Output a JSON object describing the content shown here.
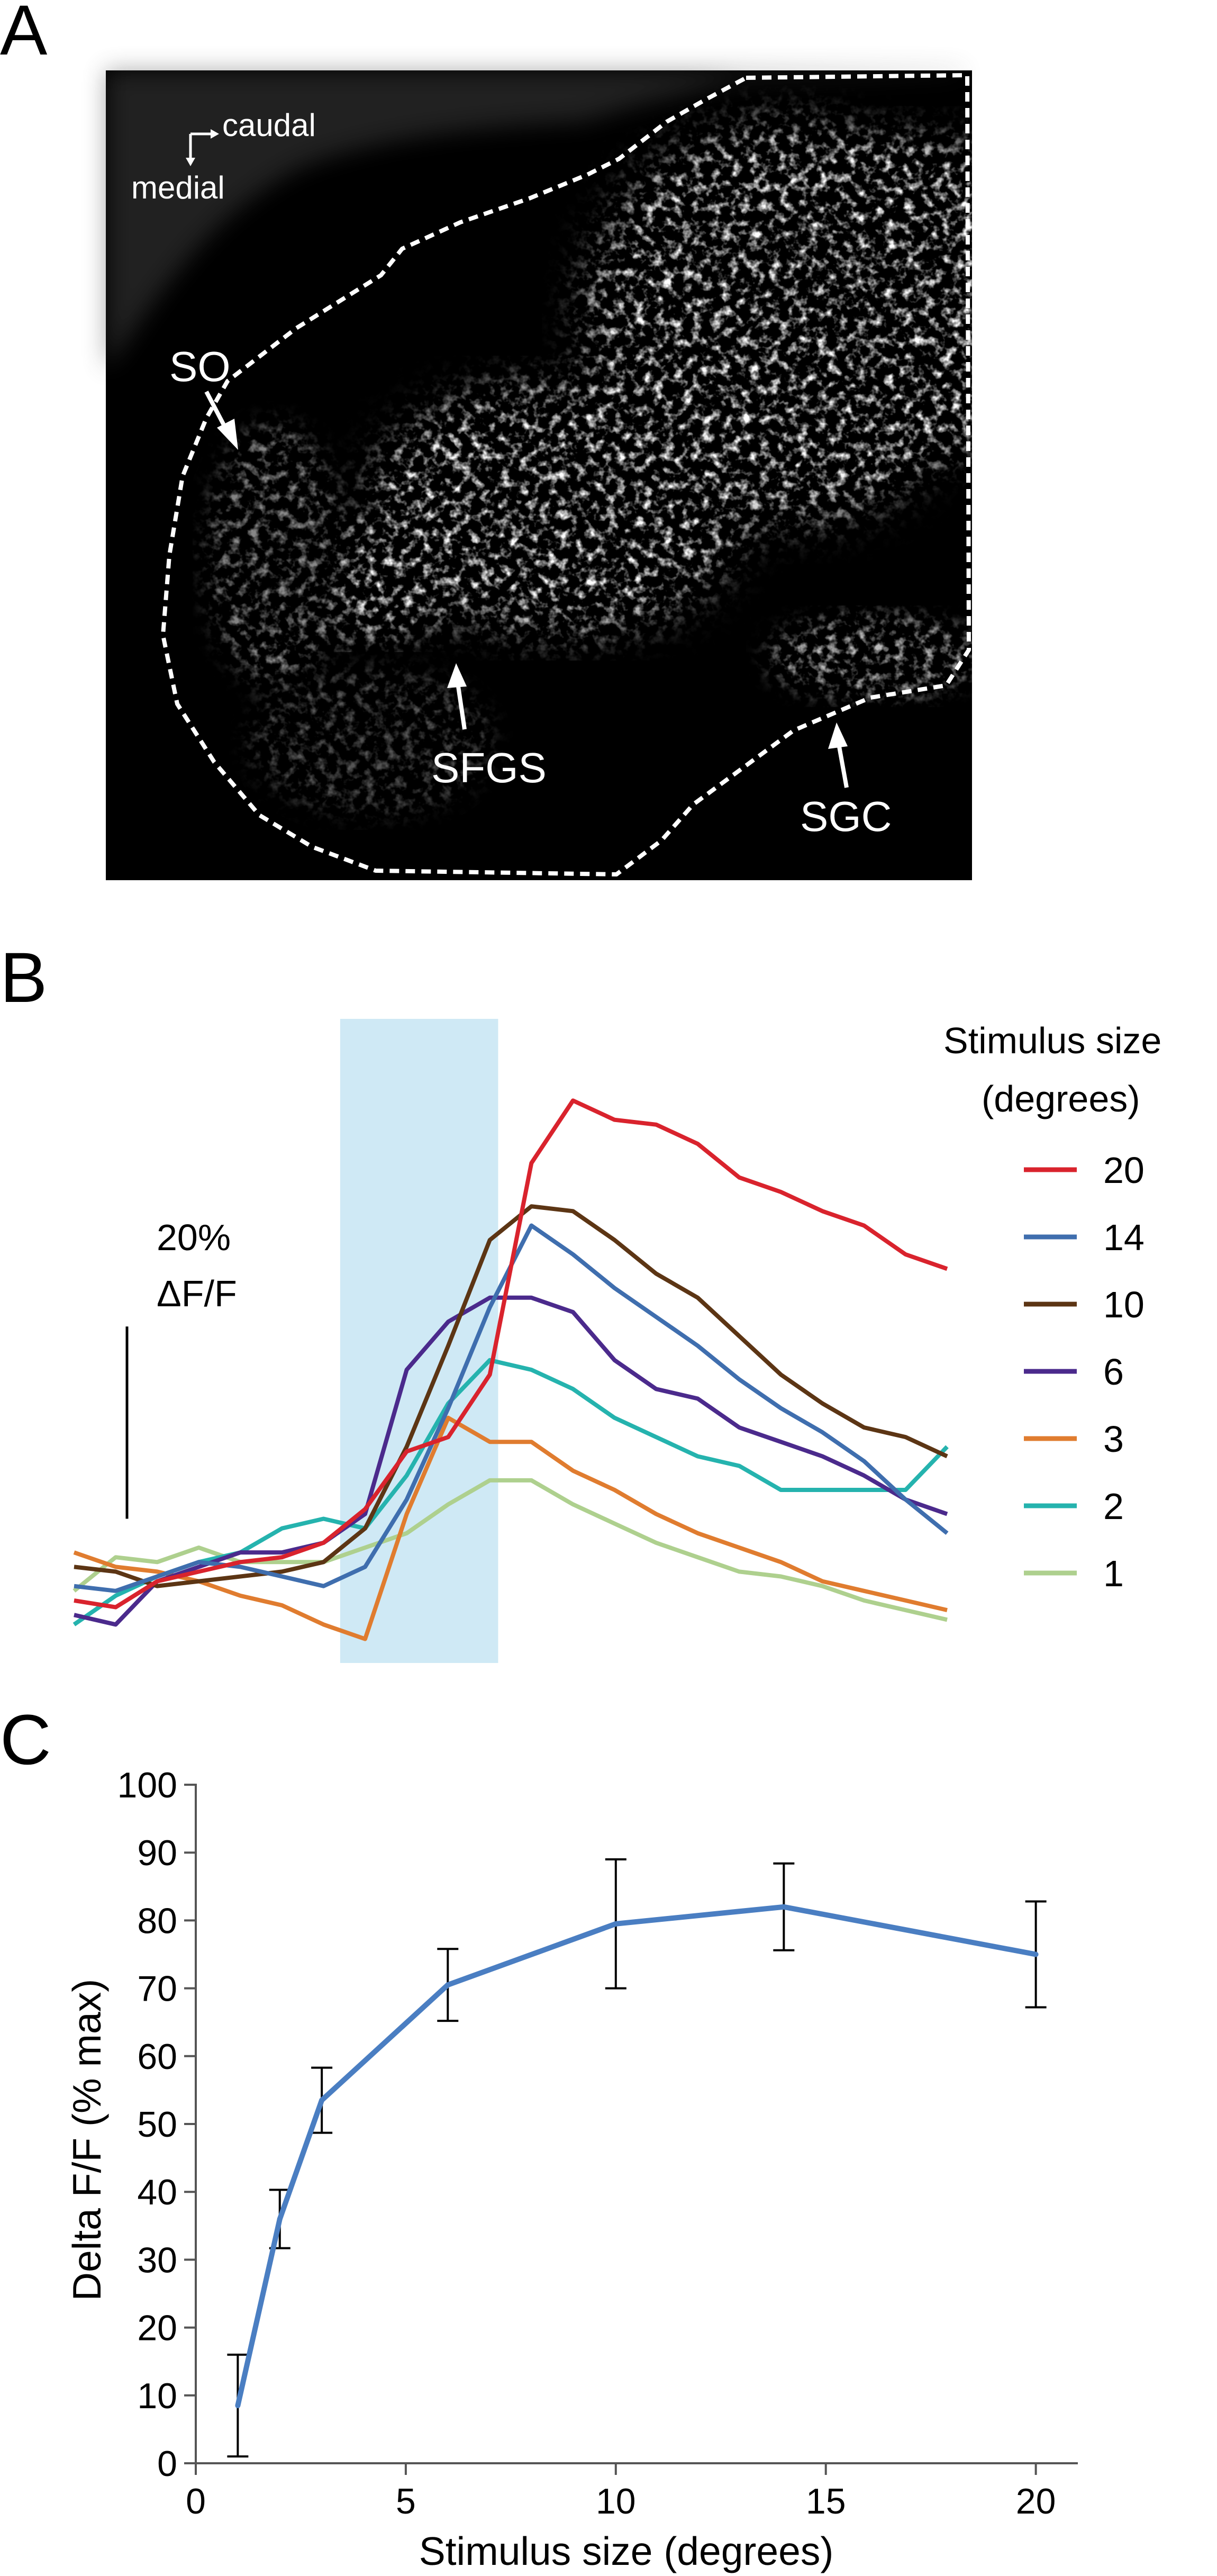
{
  "panels": {
    "a": {
      "letter": "A",
      "orientation": {
        "x_label": "caudal",
        "y_label": "medial"
      },
      "labels": {
        "so": "SO",
        "sfgs": "SFGS",
        "sgc": "SGC"
      }
    },
    "b": {
      "letter": "B",
      "scale_bar": {
        "value": "20%",
        "unit": "ΔF/F"
      },
      "legend_title": [
        "Stimulus size",
        "(degrees)"
      ]
    },
    "c": {
      "letter": "C"
    }
  },
  "colors": {
    "stimulus_band": "#cfe9f5",
    "size_20": "#d9232d",
    "size_14": "#3f6eae",
    "size_10": "#5c3514",
    "size_6": "#4b2a8c",
    "size_3": "#e07c2f",
    "size_2": "#25b3ae",
    "size_1": "#aed08e",
    "panel_c_line": "#4a7ec2"
  },
  "chart_data": [
    {
      "panel": "B",
      "type": "line",
      "title": "",
      "xlabel": "",
      "ylabel": "",
      "x": [
        0,
        1,
        2,
        3,
        4,
        5,
        6,
        7,
        8,
        9,
        10,
        11,
        12,
        13,
        14,
        15,
        16,
        17,
        18,
        19,
        20,
        21
      ],
      "stimulus_window": [
        6.4,
        10.2
      ],
      "scale_bar_value": 20,
      "ylim": [
        -5,
        62
      ],
      "legend_placement": "right",
      "series": [
        {
          "name": "20",
          "color": "#d9232d",
          "values": [
            1.5,
            0.8,
            3.5,
            4.5,
            5.5,
            6,
            7.5,
            11,
            17,
            18.5,
            25,
            47,
            53.5,
            51.5,
            51,
            49,
            45.5,
            44,
            42,
            40.5,
            37.5,
            36
          ]
        },
        {
          "name": "14",
          "color": "#3f6eae",
          "values": [
            3,
            2.5,
            4,
            5.5,
            5,
            4,
            3,
            5,
            12,
            21.5,
            32,
            40.5,
            37.5,
            34,
            31,
            28,
            24.5,
            21.5,
            19,
            16,
            12,
            8.5
          ]
        },
        {
          "name": "10",
          "color": "#5c3514",
          "values": [
            5,
            4.5,
            3,
            3.5,
            4,
            4.5,
            5.5,
            9,
            17.5,
            28,
            39,
            42.5,
            42,
            39,
            35.5,
            33,
            29,
            25,
            22,
            19.5,
            18.5,
            16.5
          ]
        },
        {
          "name": "6",
          "color": "#4b2a8c",
          "values": [
            0,
            -1,
            3.5,
            5,
            6.5,
            6.5,
            7.5,
            10.5,
            25.5,
            30.5,
            33,
            33,
            31.5,
            26.5,
            23.5,
            22.5,
            19.5,
            18,
            16.5,
            14.5,
            12,
            10.5
          ]
        },
        {
          "name": "3",
          "color": "#e07c2f",
          "values": [
            6.5,
            5,
            4.5,
            3.5,
            2,
            1,
            -1,
            -2.5,
            10.5,
            20.5,
            18,
            18,
            15,
            13,
            10.5,
            8.5,
            7,
            5.5,
            3.5,
            2.5,
            1.5,
            0.5
          ]
        },
        {
          "name": "2",
          "color": "#25b3ae",
          "values": [
            -1,
            2,
            4,
            5.5,
            6.5,
            9,
            10,
            9,
            14.5,
            22,
            26.5,
            25.5,
            23.5,
            20.5,
            18.5,
            16.5,
            15.5,
            13,
            13,
            13,
            13,
            17.5
          ]
        },
        {
          "name": "1",
          "color": "#aed08e",
          "values": [
            2.5,
            6,
            5.5,
            7,
            5.5,
            5.5,
            5.5,
            7,
            8.5,
            11.5,
            14,
            14,
            11.5,
            9.5,
            7.5,
            6,
            4.5,
            4,
            3,
            1.5,
            0.5,
            -0.5
          ]
        }
      ]
    },
    {
      "panel": "C",
      "type": "line",
      "title": "",
      "xlabel": "Stimulus size (degrees)",
      "ylabel": "Delta F/F (% max)",
      "xlim": [
        0,
        21
      ],
      "ylim": [
        0,
        100
      ],
      "xticks": [
        0,
        5,
        10,
        15,
        20
      ],
      "yticks": [
        0,
        10,
        20,
        30,
        40,
        50,
        60,
        70,
        80,
        90,
        100
      ],
      "grid": false,
      "series": [
        {
          "name": "",
          "color": "#4a7ec2",
          "x": [
            1,
            2,
            3,
            6,
            10,
            14,
            20
          ],
          "y": [
            8.5,
            36,
            53.5,
            70.5,
            79.5,
            82,
            75
          ],
          "error": [
            7.5,
            4.3,
            4.8,
            5.3,
            9.5,
            6.4,
            7.8
          ]
        }
      ]
    }
  ]
}
